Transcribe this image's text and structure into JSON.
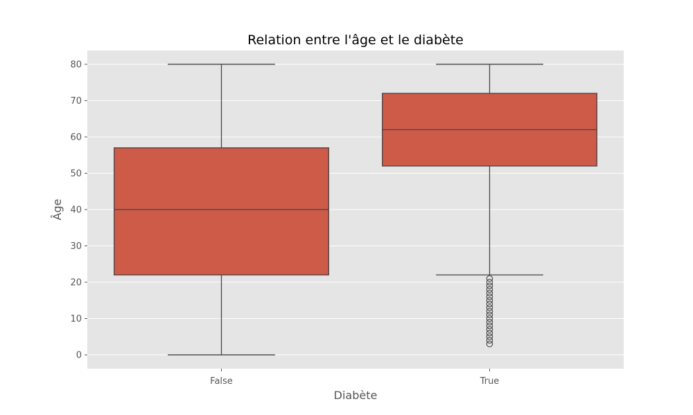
{
  "chart_data": {
    "type": "boxplot",
    "title": "Relation entre l'âge et le diabète",
    "xlabel": "Diabète",
    "ylabel": "Âge",
    "ylim": [
      -3.8,
      83.8
    ],
    "yticks": [
      0,
      10,
      20,
      30,
      40,
      50,
      60,
      70,
      80
    ],
    "grid": true,
    "colors": {
      "box_fill": "#cd5b48",
      "line": "#444444",
      "plot_background": "#e5e5e5",
      "grid": "#ffffff"
    },
    "categories": [
      "False",
      "True"
    ],
    "boxes": [
      {
        "category": "False",
        "whisker_low": 0,
        "q1": 22,
        "median": 40,
        "q3": 57,
        "whisker_high": 80,
        "outliers": []
      },
      {
        "category": "True",
        "whisker_low": 22,
        "q1": 52,
        "median": 62,
        "q3": 72,
        "whisker_high": 80,
        "outliers": [
          3,
          4,
          5,
          6,
          7,
          8,
          9,
          10,
          11,
          12,
          13,
          14,
          15,
          16,
          17,
          18,
          19,
          20,
          21
        ]
      }
    ]
  }
}
